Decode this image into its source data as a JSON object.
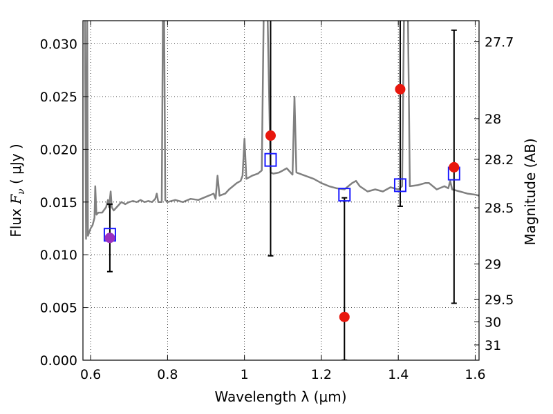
{
  "chart_data": {
    "type": "scatter",
    "xlabel": "Wavelength  λ (μm)",
    "ylabel_left": "Flux  F_ν  ( μJy )",
    "ylabel_left_parts": {
      "prefix": "Flux  ",
      "symbol": "F",
      "subscript": "ν",
      "suffix": "  ( μJy )"
    },
    "ylabel_right": "Magnitude (AB)",
    "xlim": [
      0.58,
      1.61
    ],
    "ylim": [
      0.0,
      0.0322
    ],
    "grid": true,
    "x_ticks": [
      {
        "value": 0.6,
        "label": "0.6"
      },
      {
        "value": 0.8,
        "label": "0.8"
      },
      {
        "value": 1.0,
        "label": "1"
      },
      {
        "value": 1.2,
        "label": "1.2"
      },
      {
        "value": 1.4,
        "label": "1.4"
      },
      {
        "value": 1.6,
        "label": "1.6"
      }
    ],
    "y_ticks": [
      {
        "value": 0.0,
        "label": "0.000"
      },
      {
        "value": 0.005,
        "label": "0.005"
      },
      {
        "value": 0.01,
        "label": "0.010"
      },
      {
        "value": 0.015,
        "label": "0.015"
      },
      {
        "value": 0.02,
        "label": "0.020"
      },
      {
        "value": 0.025,
        "label": "0.025"
      },
      {
        "value": 0.03,
        "label": "0.030"
      }
    ],
    "right_ticks": [
      {
        "mag": 27.7,
        "label": "27.7"
      },
      {
        "mag": 28.0,
        "label": "28"
      },
      {
        "mag": 28.2,
        "label": "28.2"
      },
      {
        "mag": 28.5,
        "label": "28.5"
      },
      {
        "mag": 29.0,
        "label": "29"
      },
      {
        "mag": 29.5,
        "label": "29.5"
      },
      {
        "mag": 30.0,
        "label": "30"
      },
      {
        "mag": 31.0,
        "label": "31"
      }
    ],
    "observed_points": [
      {
        "x": 0.65,
        "y": 0.0116,
        "err_low": 0.0084,
        "err_high": 0.0148,
        "color": "#9b30c0"
      },
      {
        "x": 1.068,
        "y": 0.0213,
        "err_low": 0.0099,
        "err_high": 0.033,
        "color": "#e8170d"
      },
      {
        "x": 1.26,
        "y": 0.0041,
        "err_low": 0.0,
        "err_high": 0.0154,
        "color": "#e8170d"
      },
      {
        "x": 1.405,
        "y": 0.0257,
        "err_low": 0.0146,
        "err_high": 0.033,
        "color": "#e8170d"
      },
      {
        "x": 1.545,
        "y": 0.0183,
        "err_low": 0.0054,
        "err_high": 0.0313,
        "color": "#e8170d"
      }
    ],
    "model_points": [
      {
        "x": 0.65,
        "y": 0.0119
      },
      {
        "x": 1.068,
        "y": 0.019
      },
      {
        "x": 1.26,
        "y": 0.0157
      },
      {
        "x": 1.405,
        "y": 0.0166
      },
      {
        "x": 1.545,
        "y": 0.0177
      }
    ],
    "spectrum": [
      [
        0.585,
        0.033
      ],
      [
        0.588,
        0.0115
      ],
      [
        0.591,
        0.033
      ],
      [
        0.593,
        0.0118
      ],
      [
        0.6,
        0.0125
      ],
      [
        0.605,
        0.0128
      ],
      [
        0.61,
        0.0135
      ],
      [
        0.612,
        0.0165
      ],
      [
        0.615,
        0.0138
      ],
      [
        0.62,
        0.014
      ],
      [
        0.63,
        0.014
      ],
      [
        0.64,
        0.0145
      ],
      [
        0.645,
        0.0152
      ],
      [
        0.648,
        0.0145
      ],
      [
        0.652,
        0.016
      ],
      [
        0.655,
        0.0145
      ],
      [
        0.66,
        0.0142
      ],
      [
        0.67,
        0.0146
      ],
      [
        0.68,
        0.015
      ],
      [
        0.69,
        0.0148
      ],
      [
        0.7,
        0.015
      ],
      [
        0.71,
        0.0151
      ],
      [
        0.72,
        0.015
      ],
      [
        0.73,
        0.0152
      ],
      [
        0.74,
        0.015
      ],
      [
        0.75,
        0.0151
      ],
      [
        0.76,
        0.015
      ],
      [
        0.768,
        0.0153
      ],
      [
        0.772,
        0.0158
      ],
      [
        0.776,
        0.015
      ],
      [
        0.785,
        0.015
      ],
      [
        0.788,
        0.033
      ],
      [
        0.791,
        0.033
      ],
      [
        0.794,
        0.0152
      ],
      [
        0.8,
        0.015
      ],
      [
        0.82,
        0.0152
      ],
      [
        0.84,
        0.015
      ],
      [
        0.86,
        0.0153
      ],
      [
        0.88,
        0.0152
      ],
      [
        0.9,
        0.0155
      ],
      [
        0.92,
        0.0158
      ],
      [
        0.925,
        0.0153
      ],
      [
        0.93,
        0.0175
      ],
      [
        0.935,
        0.0156
      ],
      [
        0.95,
        0.0158
      ],
      [
        0.96,
        0.0162
      ],
      [
        0.97,
        0.0165
      ],
      [
        0.98,
        0.0168
      ],
      [
        0.99,
        0.017
      ],
      [
        0.995,
        0.0175
      ],
      [
        1.0,
        0.021
      ],
      [
        1.005,
        0.0172
      ],
      [
        1.02,
        0.0175
      ],
      [
        1.035,
        0.0177
      ],
      [
        1.045,
        0.018
      ],
      [
        1.05,
        0.033
      ],
      [
        1.06,
        0.033
      ],
      [
        1.068,
        0.0178
      ],
      [
        1.075,
        0.0177
      ],
      [
        1.09,
        0.0178
      ],
      [
        1.1,
        0.018
      ],
      [
        1.11,
        0.0182
      ],
      [
        1.12,
        0.0178
      ],
      [
        1.125,
        0.0176
      ],
      [
        1.13,
        0.025
      ],
      [
        1.135,
        0.0178
      ],
      [
        1.15,
        0.0176
      ],
      [
        1.18,
        0.0172
      ],
      [
        1.2,
        0.0168
      ],
      [
        1.22,
        0.0165
      ],
      [
        1.24,
        0.0163
      ],
      [
        1.26,
        0.0162
      ],
      [
        1.27,
        0.0165
      ],
      [
        1.28,
        0.0168
      ],
      [
        1.29,
        0.017
      ],
      [
        1.3,
        0.0165
      ],
      [
        1.32,
        0.016
      ],
      [
        1.34,
        0.0162
      ],
      [
        1.36,
        0.016
      ],
      [
        1.38,
        0.0164
      ],
      [
        1.4,
        0.0162
      ],
      [
        1.41,
        0.0165
      ],
      [
        1.415,
        0.033
      ],
      [
        1.425,
        0.033
      ],
      [
        1.43,
        0.0165
      ],
      [
        1.45,
        0.0166
      ],
      [
        1.47,
        0.0168
      ],
      [
        1.48,
        0.0168
      ],
      [
        1.5,
        0.0162
      ],
      [
        1.52,
        0.0165
      ],
      [
        1.53,
        0.0163
      ],
      [
        1.535,
        0.017
      ],
      [
        1.54,
        0.0162
      ],
      [
        1.56,
        0.016
      ],
      [
        1.58,
        0.0158
      ],
      [
        1.6,
        0.0157
      ],
      [
        1.61,
        0.0156
      ]
    ],
    "colors": {
      "spectrum": "#808080",
      "model_marker": "#1a1aff",
      "errorbar": "#000000",
      "grid": "#000000"
    }
  }
}
